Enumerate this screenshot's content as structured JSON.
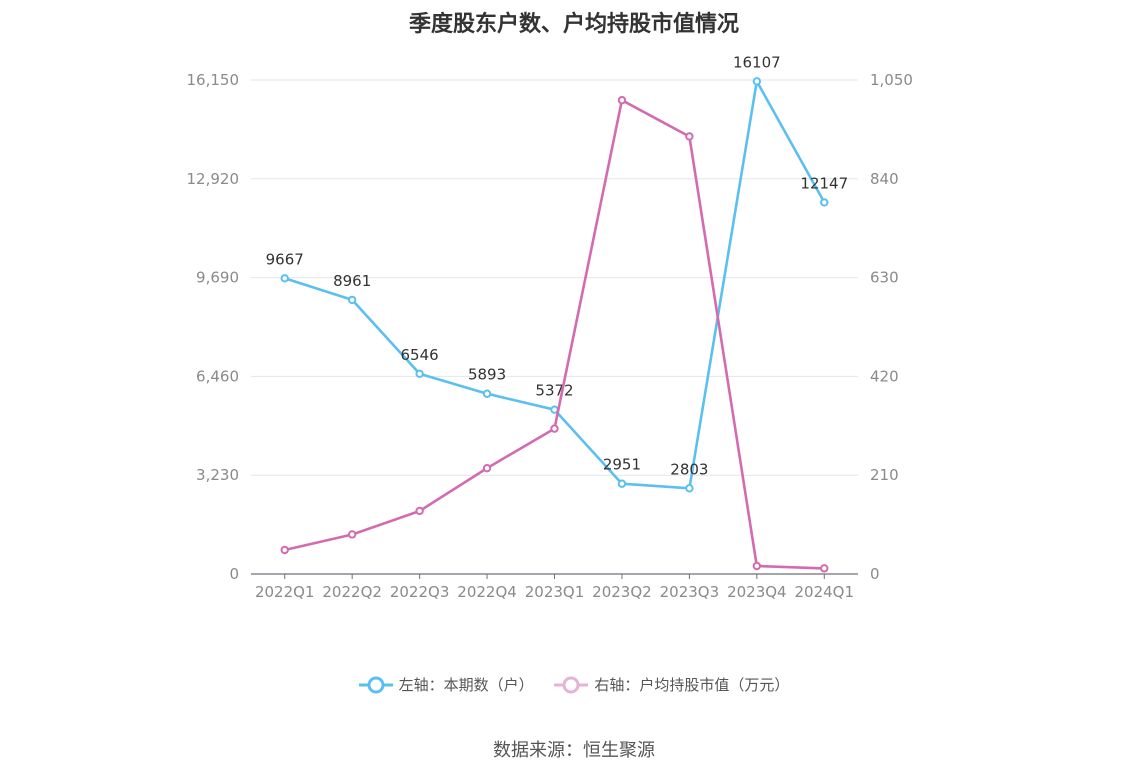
{
  "chart_data": {
    "type": "line",
    "title": "季度股东户数、户均持股市值情况",
    "categories": [
      "2022Q1",
      "2022Q2",
      "2022Q3",
      "2022Q4",
      "2023Q1",
      "2023Q2",
      "2023Q3",
      "2023Q4",
      "2024Q1"
    ],
    "y_left": {
      "ticks": [
        "0",
        "3,230",
        "6,460",
        "9,690",
        "12,920",
        "16,150"
      ],
      "range": [
        0,
        16150
      ]
    },
    "y_right": {
      "ticks": [
        "0",
        "210",
        "420",
        "630",
        "840",
        "1,050"
      ],
      "range": [
        0,
        1050
      ]
    },
    "series": [
      {
        "name": "左轴：本期数（户）",
        "axis": "left",
        "color": "#5bc0f0",
        "values": [
          9667,
          8961,
          6546,
          5893,
          5372,
          2951,
          2803,
          16107,
          12147
        ],
        "labels": [
          "9667",
          "8961",
          "6546",
          "5893",
          "5372",
          "2951",
          "2803",
          "16107",
          "12147"
        ]
      },
      {
        "name": "右轴：户均持股市值（万元）",
        "axis": "right",
        "color": "#d36bb0",
        "values": [
          51,
          84,
          134,
          225,
          309,
          1007,
          930,
          17,
          12
        ]
      }
    ],
    "grid": true,
    "legend_position": "bottom"
  },
  "source": "数据来源：恒生聚源"
}
